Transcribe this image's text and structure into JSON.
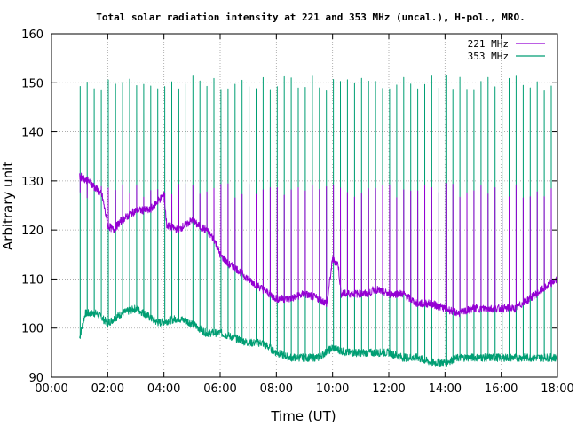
{
  "chart_data": {
    "type": "line",
    "title": "Total solar radiation intensity at 221 and 353 MHz (uncal.), H-pol., MRO.",
    "xlabel": "Time (UT)",
    "ylabel": "Arbitrary unit",
    "xlim": [
      0,
      18
    ],
    "ylim": [
      90,
      160
    ],
    "x_ticks": [
      0,
      2,
      4,
      6,
      8,
      10,
      12,
      14,
      16,
      18
    ],
    "x_tick_labels": [
      "00:00",
      "02:00",
      "04:00",
      "06:00",
      "08:00",
      "10:00",
      "12:00",
      "14:00",
      "16:00",
      "18:00"
    ],
    "y_ticks": [
      90,
      100,
      110,
      120,
      130,
      140,
      150,
      160
    ],
    "y_tick_labels": [
      "90",
      "100",
      "110",
      "120",
      "130",
      "140",
      "150",
      "160"
    ],
    "grid": true,
    "legend_position": "top-right",
    "calibration_spike_interval_hours": 0.25,
    "series": [
      {
        "name": "221 MHz",
        "color": "#9400d3",
        "spike_peak": 128,
        "baseline": [
          [
            1.0,
            131
          ],
          [
            1.3,
            130
          ],
          [
            1.5,
            129
          ],
          [
            1.8,
            127
          ],
          [
            2.0,
            121
          ],
          [
            2.2,
            120
          ],
          [
            2.5,
            122
          ],
          [
            3.0,
            124
          ],
          [
            3.5,
            124
          ],
          [
            3.8,
            126
          ],
          [
            4.0,
            127
          ],
          [
            4.1,
            121
          ],
          [
            4.5,
            120
          ],
          [
            5.0,
            122
          ],
          [
            5.2,
            121
          ],
          [
            5.5,
            120
          ],
          [
            5.8,
            118
          ],
          [
            6.0,
            115
          ],
          [
            6.3,
            113
          ],
          [
            6.6,
            112
          ],
          [
            7.0,
            110
          ],
          [
            7.5,
            108
          ],
          [
            8.0,
            106
          ],
          [
            8.5,
            106
          ],
          [
            9.0,
            107
          ],
          [
            9.5,
            106
          ],
          [
            9.8,
            105
          ],
          [
            10.0,
            114
          ],
          [
            10.2,
            113
          ],
          [
            10.3,
            107
          ],
          [
            10.8,
            107
          ],
          [
            11.3,
            107
          ],
          [
            11.5,
            108
          ],
          [
            12.0,
            107
          ],
          [
            12.5,
            107
          ],
          [
            13.0,
            105
          ],
          [
            13.5,
            105
          ],
          [
            14.0,
            104
          ],
          [
            14.5,
            103
          ],
          [
            15.0,
            104
          ],
          [
            15.5,
            104
          ],
          [
            16.0,
            104
          ],
          [
            16.5,
            104
          ],
          [
            17.0,
            106
          ],
          [
            17.5,
            108
          ],
          [
            18.0,
            110
          ]
        ]
      },
      {
        "name": "353 MHz",
        "color": "#009e73",
        "spike_peak": 150,
        "baseline": [
          [
            1.0,
            98
          ],
          [
            1.2,
            103
          ],
          [
            1.6,
            103
          ],
          [
            2.0,
            101
          ],
          [
            2.5,
            103
          ],
          [
            3.0,
            104
          ],
          [
            3.3,
            103
          ],
          [
            3.8,
            101
          ],
          [
            4.5,
            102
          ],
          [
            5.0,
            101
          ],
          [
            5.5,
            99
          ],
          [
            6.0,
            99
          ],
          [
            6.5,
            98
          ],
          [
            7.0,
            97
          ],
          [
            7.5,
            97
          ],
          [
            8.0,
            95
          ],
          [
            8.5,
            94
          ],
          [
            9.0,
            94
          ],
          [
            9.5,
            94
          ],
          [
            10.0,
            96
          ],
          [
            10.5,
            95
          ],
          [
            11.0,
            95
          ],
          [
            11.5,
            95
          ],
          [
            12.0,
            95
          ],
          [
            12.5,
            94
          ],
          [
            13.0,
            94
          ],
          [
            13.5,
            93
          ],
          [
            14.0,
            93
          ],
          [
            14.5,
            94
          ],
          [
            15.0,
            94
          ],
          [
            15.5,
            94
          ],
          [
            16.0,
            94
          ],
          [
            16.5,
            94
          ],
          [
            17.0,
            94
          ],
          [
            17.5,
            94
          ],
          [
            18.0,
            94
          ]
        ]
      }
    ]
  }
}
